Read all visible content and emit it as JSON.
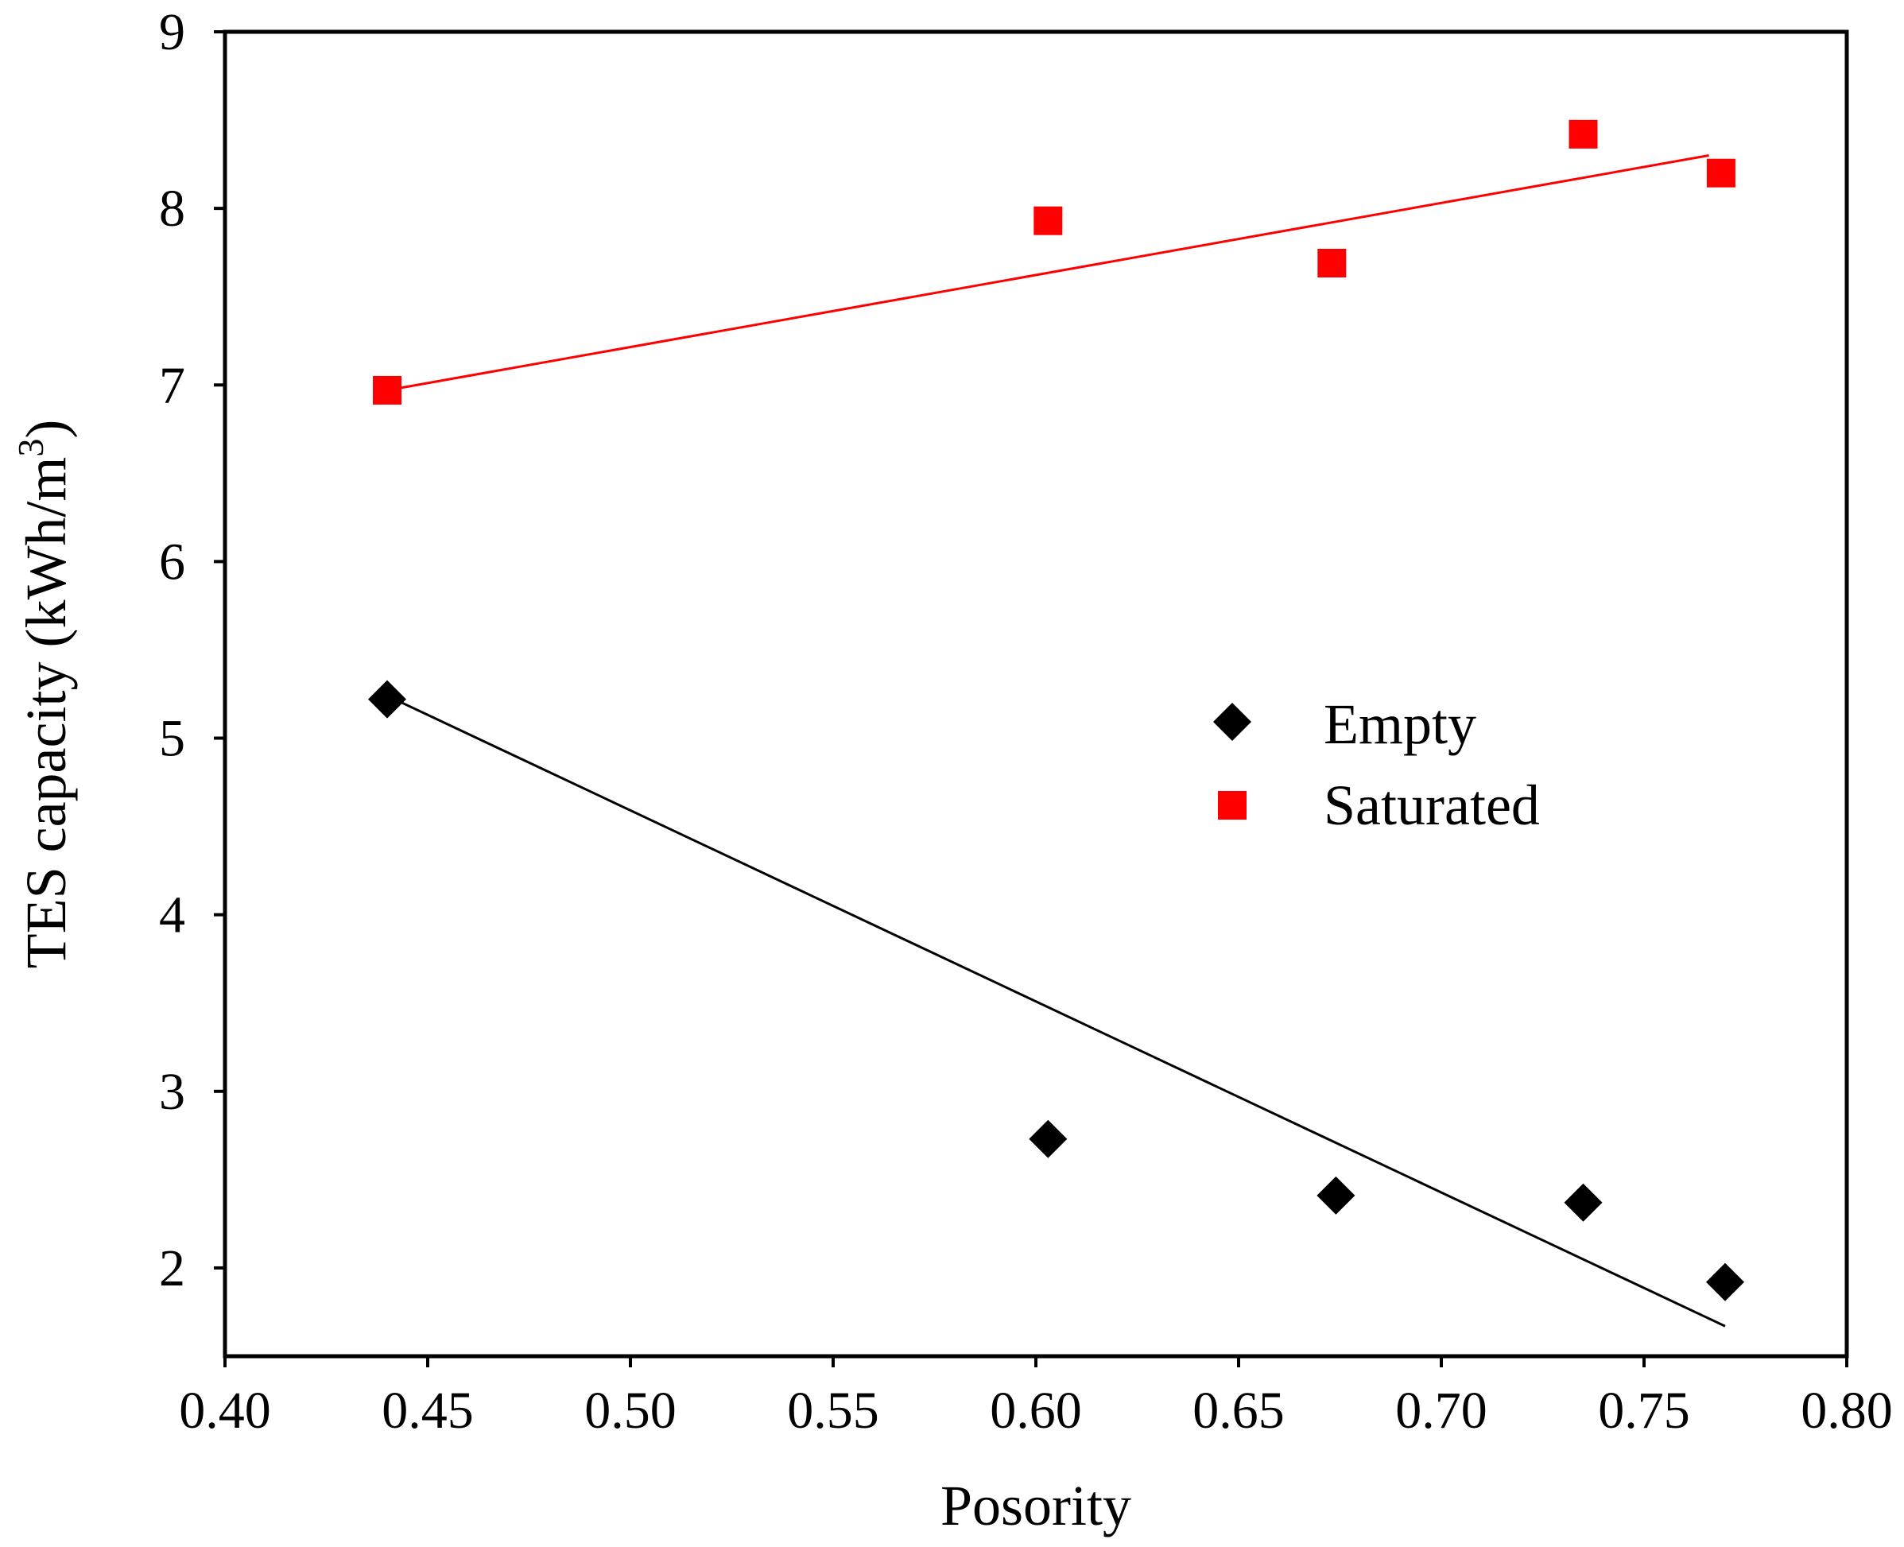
{
  "chart_data": {
    "type": "scatter",
    "title": "",
    "xlabel": "Posority",
    "ylabel": "TES capacity (kWh/m3)",
    "ylabel_parts": {
      "main": "TES capacity (kWh/m",
      "superscript": "3",
      "close": ")"
    },
    "xlim": [
      0.4,
      0.8
    ],
    "ylim": [
      1.5,
      9
    ],
    "xticks": [
      0.4,
      0.45,
      0.5,
      0.55,
      0.6,
      0.65,
      0.7,
      0.75,
      0.8
    ],
    "xtick_labels": [
      "0.40",
      "0.45",
      "0.50",
      "0.55",
      "0.60",
      "0.65",
      "0.70",
      "0.75",
      "0.80"
    ],
    "yticks": [
      2,
      3,
      4,
      5,
      6,
      7,
      8,
      9
    ],
    "ytick_labels": [
      "2",
      "3",
      "4",
      "5",
      "6",
      "7",
      "8",
      "9"
    ],
    "grid": false,
    "legend_position": "center-right",
    "series": [
      {
        "name": "Empty",
        "marker": "diamond",
        "color": "#000000",
        "x": [
          0.44,
          0.603,
          0.674,
          0.735,
          0.77
        ],
        "y": [
          5.22,
          2.73,
          2.41,
          2.37,
          1.92
        ],
        "trendline": {
          "x": [
            0.44,
            0.77
          ],
          "y": [
            5.24,
            1.67
          ]
        }
      },
      {
        "name": "Saturated",
        "marker": "square",
        "color": "#ff0000",
        "x": [
          0.44,
          0.603,
          0.673,
          0.735,
          0.769
        ],
        "y": [
          6.97,
          7.93,
          7.69,
          8.42,
          8.2
        ],
        "trendline": {
          "x": [
            0.44,
            0.766
          ],
          "y": [
            6.97,
            8.3
          ]
        }
      }
    ]
  }
}
